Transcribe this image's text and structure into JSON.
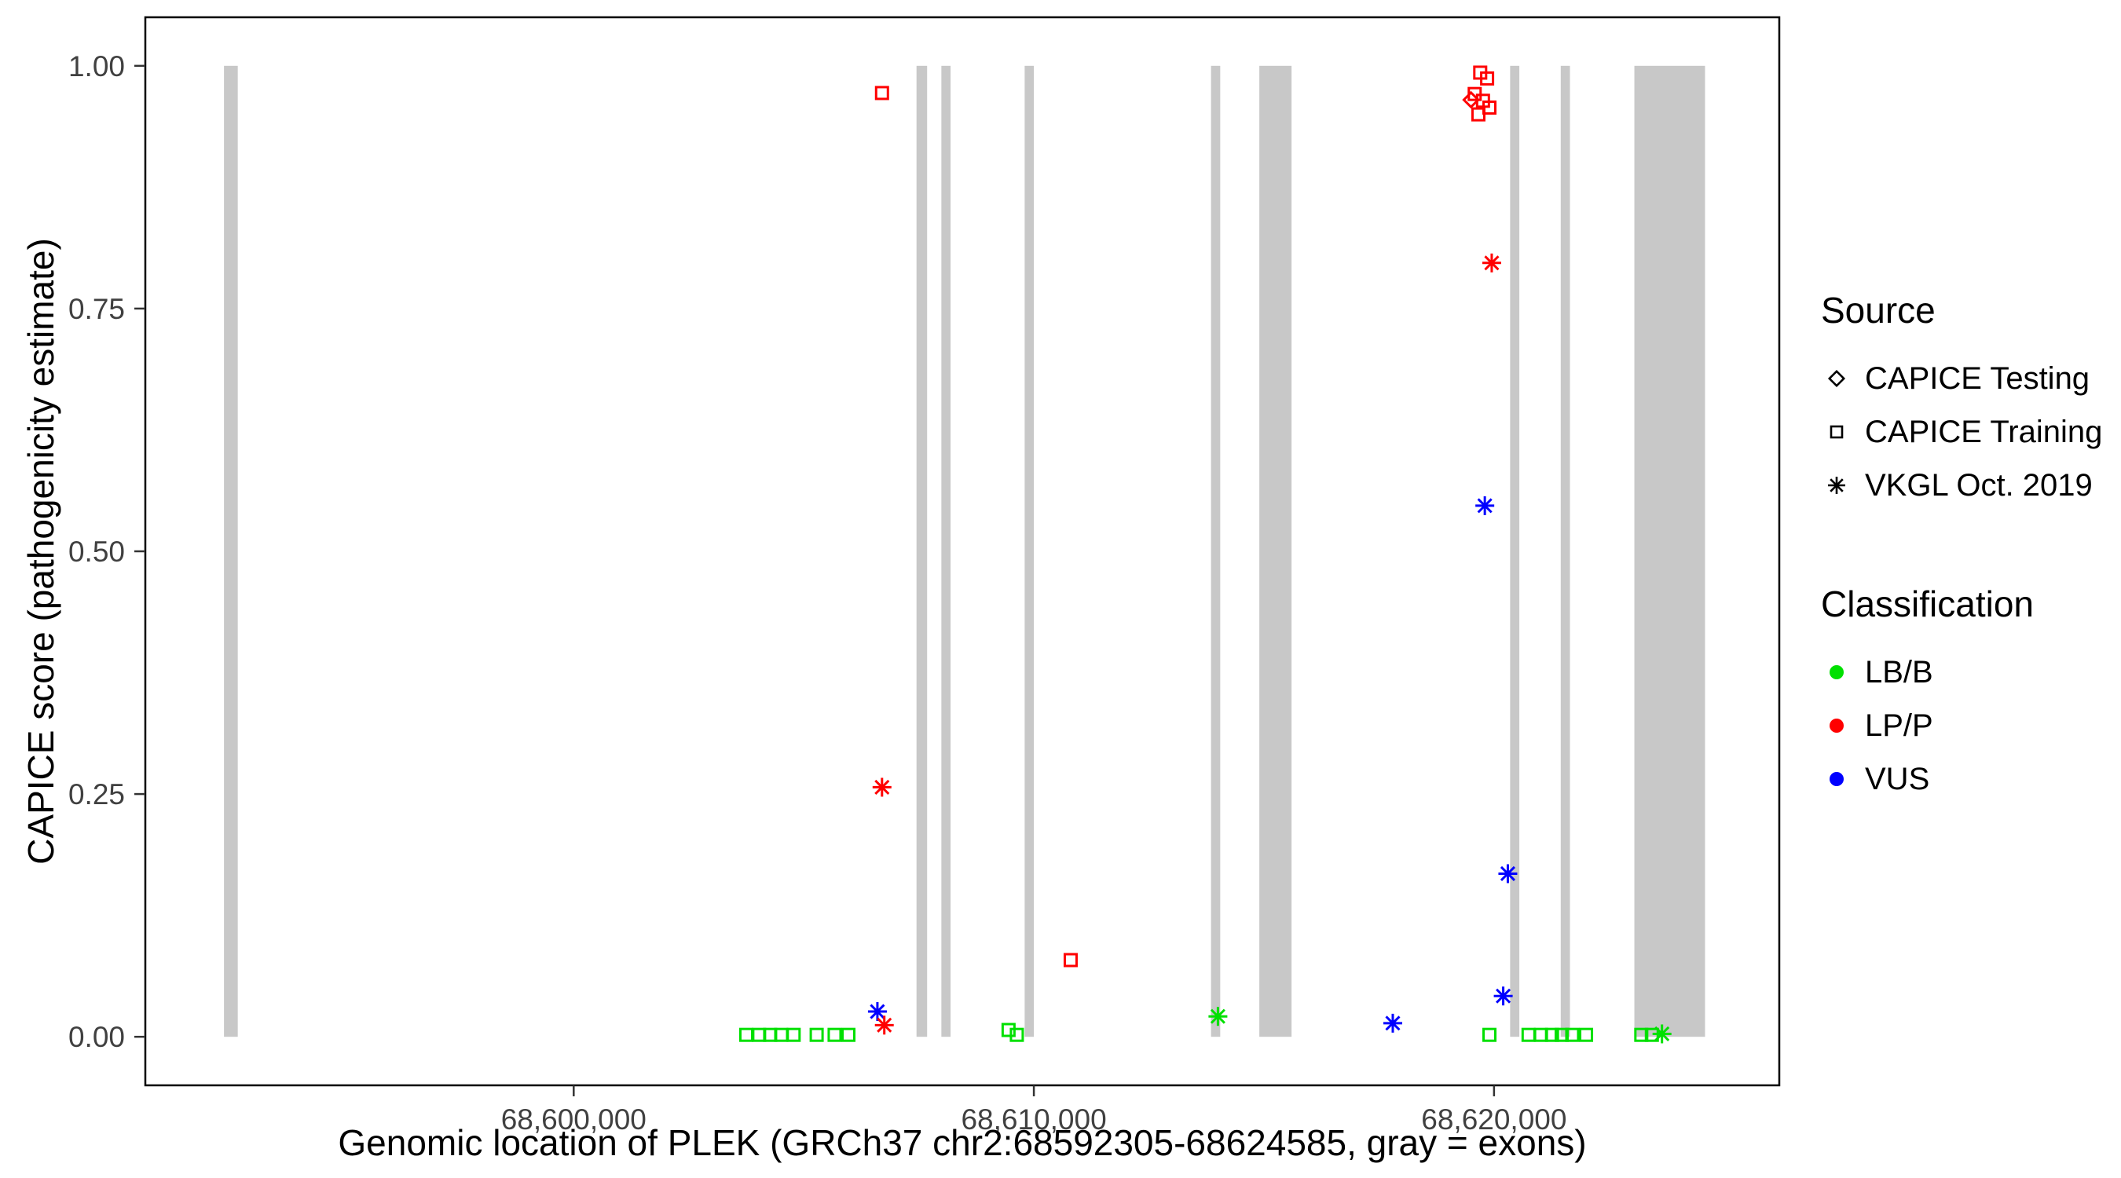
{
  "chart_data": {
    "type": "scatter",
    "title": "",
    "xlabel": "Genomic location of PLEK (GRCh37 chr2:68592305-68624585, gray = exons)",
    "ylabel": "CAPICE score (pathogenicity estimate)",
    "xlim": [
      68590691,
      68626199
    ],
    "ylim": [
      -0.05,
      1.05
    ],
    "grid": "off",
    "x_ticks": [
      {
        "value": 68600000,
        "label": "68,600,000"
      },
      {
        "value": 68610000,
        "label": "68,610,000"
      },
      {
        "value": 68620000,
        "label": "68,620,000"
      }
    ],
    "y_ticks": [
      {
        "value": 0.0,
        "label": "0.00"
      },
      {
        "value": 0.25,
        "label": "0.25"
      },
      {
        "value": 0.5,
        "label": "0.50"
      },
      {
        "value": 0.75,
        "label": "0.75"
      },
      {
        "value": 1.0,
        "label": "1.00"
      }
    ],
    "exon_color": "#c8c8c8",
    "exons": [
      [
        68592400,
        68592700
      ],
      [
        68607450,
        68607680
      ],
      [
        68607990,
        68608190
      ],
      [
        68609800,
        68610000
      ],
      [
        68613850,
        68614050
      ],
      [
        68614900,
        68615600
      ],
      [
        68620350,
        68620550
      ],
      [
        68621450,
        68621650
      ],
      [
        68623050,
        68624585
      ]
    ],
    "classification_colors": {
      "LB/B": "#00e000",
      "LP/P": "#ff0000",
      "VUS": "#0000ff"
    },
    "source_shapes": {
      "CAPICE Testing": "diamond",
      "CAPICE Training": "square",
      "VKGL Oct. 2019": "asterisk"
    },
    "points": [
      {
        "x": 68606700,
        "y": 0.972,
        "source": "CAPICE Training",
        "classification": "LP/P"
      },
      {
        "x": 68619500,
        "y": 0.965,
        "source": "CAPICE Testing",
        "classification": "LP/P"
      },
      {
        "x": 68619700,
        "y": 0.993,
        "source": "CAPICE Training",
        "classification": "LP/P"
      },
      {
        "x": 68619850,
        "y": 0.987,
        "source": "CAPICE Training",
        "classification": "LP/P"
      },
      {
        "x": 68619580,
        "y": 0.971,
        "source": "CAPICE Training",
        "classification": "LP/P"
      },
      {
        "x": 68619760,
        "y": 0.964,
        "source": "CAPICE Training",
        "classification": "LP/P"
      },
      {
        "x": 68619900,
        "y": 0.957,
        "source": "CAPICE Training",
        "classification": "LP/P"
      },
      {
        "x": 68619660,
        "y": 0.95,
        "source": "CAPICE Training",
        "classification": "LP/P"
      },
      {
        "x": 68610800,
        "y": 0.079,
        "source": "CAPICE Training",
        "classification": "LP/P"
      },
      {
        "x": 68619950,
        "y": 0.797,
        "source": "VKGL Oct. 2019",
        "classification": "LP/P"
      },
      {
        "x": 68619800,
        "y": 0.547,
        "source": "VKGL Oct. 2019",
        "classification": "VUS"
      },
      {
        "x": 68606700,
        "y": 0.257,
        "source": "VKGL Oct. 2019",
        "classification": "LP/P"
      },
      {
        "x": 68620300,
        "y": 0.168,
        "source": "VKGL Oct. 2019",
        "classification": "VUS"
      },
      {
        "x": 68620200,
        "y": 0.042,
        "source": "VKGL Oct. 2019",
        "classification": "VUS"
      },
      {
        "x": 68606600,
        "y": 0.026,
        "source": "VKGL Oct. 2019",
        "classification": "VUS"
      },
      {
        "x": 68606750,
        "y": 0.012,
        "source": "VKGL Oct. 2019",
        "classification": "LP/P"
      },
      {
        "x": 68614000,
        "y": 0.021,
        "source": "VKGL Oct. 2019",
        "classification": "LB/B"
      },
      {
        "x": 68617800,
        "y": 0.014,
        "source": "VKGL Oct. 2019",
        "classification": "VUS"
      },
      {
        "x": 68623650,
        "y": 0.003,
        "source": "VKGL Oct. 2019",
        "classification": "LB/B"
      },
      {
        "x": 68603750,
        "y": 0.002,
        "source": "CAPICE Training",
        "classification": "LB/B"
      },
      {
        "x": 68604030,
        "y": 0.002,
        "source": "CAPICE Training",
        "classification": "LB/B"
      },
      {
        "x": 68604270,
        "y": 0.002,
        "source": "CAPICE Training",
        "classification": "LB/B"
      },
      {
        "x": 68604510,
        "y": 0.002,
        "source": "CAPICE Training",
        "classification": "LB/B"
      },
      {
        "x": 68604780,
        "y": 0.002,
        "source": "CAPICE Training",
        "classification": "LB/B"
      },
      {
        "x": 68605280,
        "y": 0.002,
        "source": "CAPICE Training",
        "classification": "LB/B"
      },
      {
        "x": 68605670,
        "y": 0.002,
        "source": "CAPICE Training",
        "classification": "LB/B"
      },
      {
        "x": 68605970,
        "y": 0.002,
        "source": "CAPICE Training",
        "classification": "LB/B"
      },
      {
        "x": 68609450,
        "y": 0.007,
        "source": "CAPICE Training",
        "classification": "LB/B"
      },
      {
        "x": 68609630,
        "y": 0.002,
        "source": "CAPICE Training",
        "classification": "LB/B"
      },
      {
        "x": 68619900,
        "y": 0.002,
        "source": "CAPICE Training",
        "classification": "LB/B"
      },
      {
        "x": 68620750,
        "y": 0.002,
        "source": "CAPICE Training",
        "classification": "LB/B"
      },
      {
        "x": 68621020,
        "y": 0.002,
        "source": "CAPICE Training",
        "classification": "LB/B"
      },
      {
        "x": 68621260,
        "y": 0.002,
        "source": "CAPICE Training",
        "classification": "LB/B"
      },
      {
        "x": 68621470,
        "y": 0.002,
        "source": "CAPICE Training",
        "classification": "LB/B"
      },
      {
        "x": 68621700,
        "y": 0.002,
        "source": "CAPICE Training",
        "classification": "LB/B"
      },
      {
        "x": 68622000,
        "y": 0.002,
        "source": "CAPICE Training",
        "classification": "LB/B"
      },
      {
        "x": 68623200,
        "y": 0.002,
        "source": "CAPICE Training",
        "classification": "LB/B"
      },
      {
        "x": 68623430,
        "y": 0.002,
        "source": "CAPICE Training",
        "classification": "LB/B"
      }
    ]
  },
  "legend": {
    "source": {
      "title": "Source",
      "items": [
        {
          "label": "CAPICE Testing",
          "shape": "diamond"
        },
        {
          "label": "CAPICE Training",
          "shape": "square"
        },
        {
          "label": "VKGL Oct. 2019",
          "shape": "asterisk"
        }
      ]
    },
    "classification": {
      "title": "Classification",
      "items": [
        {
          "label": "LB/B",
          "color": "#00e000"
        },
        {
          "label": "LP/P",
          "color": "#ff0000"
        },
        {
          "label": "VUS",
          "color": "#0000ff"
        }
      ]
    }
  }
}
